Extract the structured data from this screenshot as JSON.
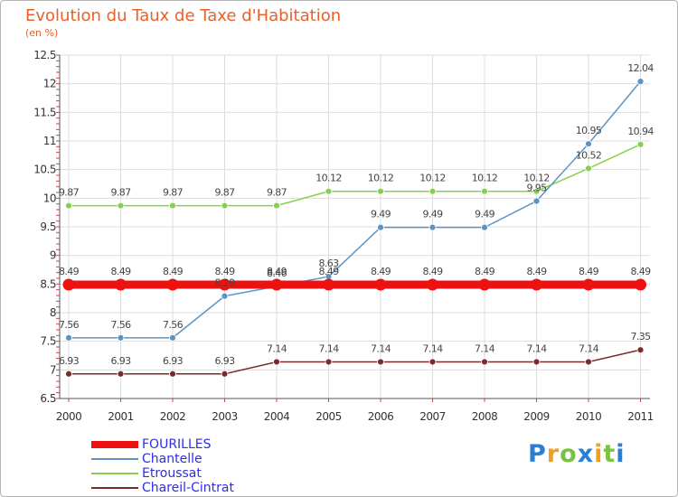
{
  "chart_data": {
    "type": "line",
    "title": "Evolution du Taux de Taxe d'Habitation",
    "subtitle": "(en %)",
    "xlabel": "",
    "ylabel": "",
    "categories": [
      "2000",
      "2001",
      "2002",
      "2003",
      "2004",
      "2005",
      "2006",
      "2007",
      "2008",
      "2009",
      "2010",
      "2011"
    ],
    "ylim": [
      6.5,
      12.5
    ],
    "yticks": [
      "6.5",
      "7",
      "7.5",
      "8",
      "8.5",
      "9",
      "9.5",
      "10",
      "10.5",
      "11",
      "11.5",
      "12",
      "12.5"
    ],
    "series": [
      {
        "name": "FOURILLES",
        "color": "#ee1111",
        "values": [
          8.49,
          8.49,
          8.49,
          8.49,
          8.49,
          8.49,
          8.49,
          8.49,
          8.49,
          8.49,
          8.49,
          8.49
        ],
        "labels": [
          "8.49",
          "8.49",
          "8.49",
          "8.49",
          "8.49",
          "8.49",
          "8.49",
          "8.49",
          "8.49",
          "8.49",
          "8.49",
          "8.49"
        ]
      },
      {
        "name": "Chantelle",
        "color": "#5b93c6",
        "values": [
          7.56,
          7.56,
          7.56,
          8.29,
          8.46,
          8.63,
          9.49,
          9.49,
          9.49,
          9.95,
          10.95,
          12.04
        ],
        "labels": [
          "7.56",
          "7.56",
          "7.56",
          "8.29",
          "8.46",
          "8.63",
          "9.49",
          "9.49",
          "9.49",
          "9.95",
          "10.95",
          "12.04"
        ]
      },
      {
        "name": "Etroussat",
        "color": "#86d14b",
        "values": [
          9.87,
          9.87,
          9.87,
          9.87,
          9.87,
          10.12,
          10.12,
          10.12,
          10.12,
          10.12,
          10.52,
          10.94
        ],
        "labels": [
          "9.87",
          "9.87",
          "9.87",
          "9.87",
          "9.87",
          "10.12",
          "10.12",
          "10.12",
          "10.12",
          "10.12",
          "10.52",
          "10.94"
        ]
      },
      {
        "name": "Chareil-Cintrat",
        "color": "#7a2b2b",
        "values": [
          6.93,
          6.93,
          6.93,
          6.93,
          7.14,
          7.14,
          7.14,
          7.14,
          7.14,
          7.14,
          7.14,
          7.35
        ],
        "labels": [
          "6.93",
          "6.93",
          "6.93",
          "6.93",
          "7.14",
          "7.14",
          "7.14",
          "7.14",
          "7.14",
          "7.14",
          "7.14",
          "7.35"
        ]
      }
    ],
    "legend_position": "bottom-left"
  },
  "logo": {
    "letters": [
      "P",
      "r",
      "o",
      "x",
      "i",
      "t",
      "i"
    ],
    "colors": [
      "#2a7fd4",
      "#f0a020",
      "#7cc242",
      "#2a7fd4",
      "#f0a020",
      "#7cc242",
      "#2a7fd4"
    ]
  }
}
